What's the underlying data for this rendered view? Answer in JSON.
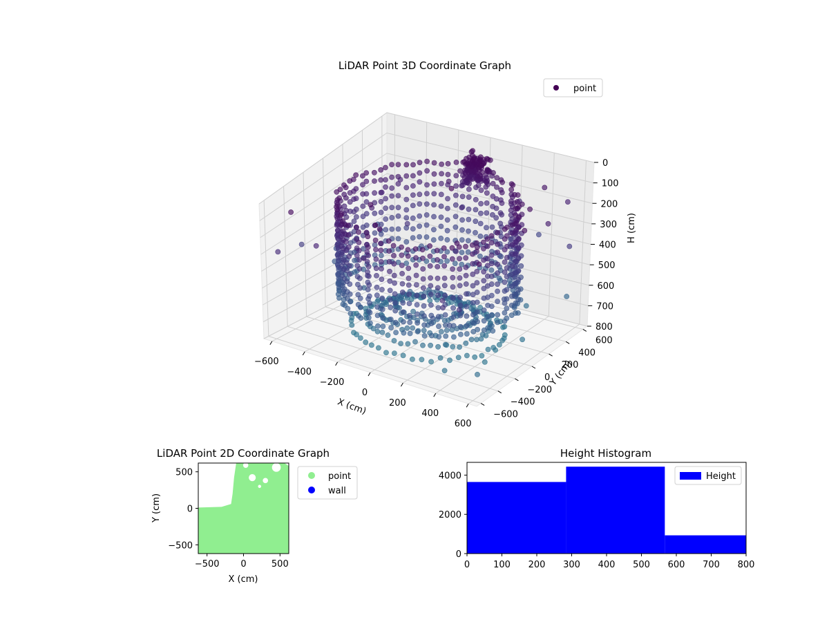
{
  "chart_data": [
    {
      "type": "scatter",
      "projection": "3d",
      "title": "LiDAR Point 3D Coordinate Graph",
      "xlabel": "X (cm)",
      "ylabel": "Y (cm)",
      "zlabel": "H (cm)",
      "xticks": [
        "−600",
        "−400",
        "−200",
        "0",
        "200",
        "400",
        "600"
      ],
      "yticks": [
        "−600",
        "−400",
        "−200",
        "0",
        "200",
        "400",
        "600"
      ],
      "zticks": [
        "0",
        "100",
        "200",
        "300",
        "400",
        "500",
        "600",
        "700",
        "800"
      ],
      "xlim": [
        -650,
        650
      ],
      "ylim": [
        -650,
        650
      ],
      "zlim": [
        0,
        800
      ],
      "z_inverted": true,
      "grid": true,
      "legend": {
        "entries": [
          {
            "label": "point",
            "color": "#440154"
          }
        ],
        "placement": "upper right"
      },
      "colormap": "viridis",
      "series": [
        {
          "name": "point",
          "shape": "ring of vertical wall points around the sensor with a dense cluster near the far side and scattered outliers"
        }
      ]
    },
    {
      "type": "scatter",
      "title": "LiDAR Point 2D Coordinate Graph",
      "xlabel": "X (cm)",
      "ylabel": "Y (cm)",
      "xticks": [
        "−500",
        "0",
        "500"
      ],
      "yticks": [
        "−500",
        "0",
        "500"
      ],
      "xlim": [
        -620,
        620
      ],
      "ylim": [
        -620,
        620
      ],
      "legend": {
        "entries": [
          {
            "label": "point",
            "color": "#90ee90"
          },
          {
            "label": "wall",
            "color": "#0000ff"
          }
        ],
        "placement": "outside right"
      }
    },
    {
      "type": "bar",
      "title": "Height Histogram",
      "xlabel": "",
      "ylabel": "",
      "bins": [
        [
          0,
          284
        ],
        [
          284,
          567
        ],
        [
          567,
          800
        ]
      ],
      "values": [
        3650,
        4430,
        930
      ],
      "xticks": [
        "0",
        "100",
        "200",
        "300",
        "400",
        "500",
        "600",
        "700",
        "800"
      ],
      "yticks": [
        "0",
        "2000",
        "4000"
      ],
      "xlim": [
        0,
        800
      ],
      "ylim": [
        0,
        4650
      ],
      "color": "#0000ff",
      "legend": {
        "entries": [
          {
            "label": "Height",
            "color": "#0000ff"
          }
        ],
        "placement": "upper right"
      }
    }
  ]
}
